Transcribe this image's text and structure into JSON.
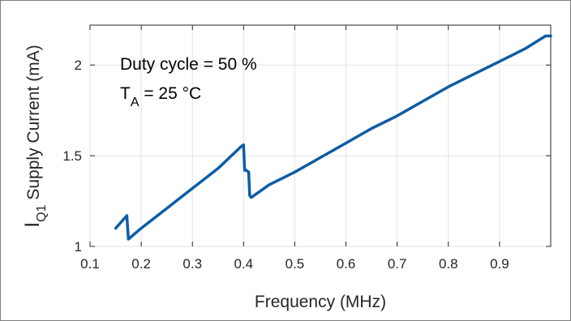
{
  "chart_data": {
    "type": "line",
    "xlabel": "Frequency (MHz)",
    "ylabel": {
      "main": "I",
      "subscript": "Q1",
      "rest": " Supply Current (mA)"
    },
    "xlim": [
      0.1,
      1.0
    ],
    "ylim": [
      1.0,
      2.22
    ],
    "x_ticks": [
      0.1,
      0.2,
      0.3,
      0.4,
      0.5,
      0.6,
      0.7,
      0.8,
      0.9
    ],
    "x_tick_labels": [
      "0.1",
      "0.2",
      "0.3",
      "0.4",
      "0.5",
      "0.6",
      "0.7",
      "0.8",
      "0.9"
    ],
    "y_ticks": [
      1.0,
      1.5,
      2.0
    ],
    "y_tick_labels": [
      "1",
      "1.5",
      "2"
    ],
    "grid": true,
    "annotations": {
      "line1": "Duty cycle = 50 %",
      "line2_main": "T",
      "line2_subscript": "A",
      "line2_rest": " = 25 °C"
    },
    "series": [
      {
        "color": "#0C5DA5",
        "x": [
          0.15,
          0.172,
          0.175,
          0.2,
          0.25,
          0.3,
          0.35,
          0.395,
          0.4,
          0.402,
          0.405,
          0.41,
          0.412,
          0.415,
          0.45,
          0.5,
          0.55,
          0.6,
          0.65,
          0.7,
          0.75,
          0.8,
          0.85,
          0.9,
          0.95,
          0.99,
          1.0
        ],
        "y": [
          1.1,
          1.17,
          1.04,
          1.1,
          1.21,
          1.32,
          1.43,
          1.55,
          1.56,
          1.42,
          1.42,
          1.41,
          1.28,
          1.27,
          1.34,
          1.41,
          1.49,
          1.57,
          1.65,
          1.72,
          1.8,
          1.88,
          1.95,
          2.02,
          2.09,
          2.16,
          2.16
        ]
      }
    ]
  }
}
